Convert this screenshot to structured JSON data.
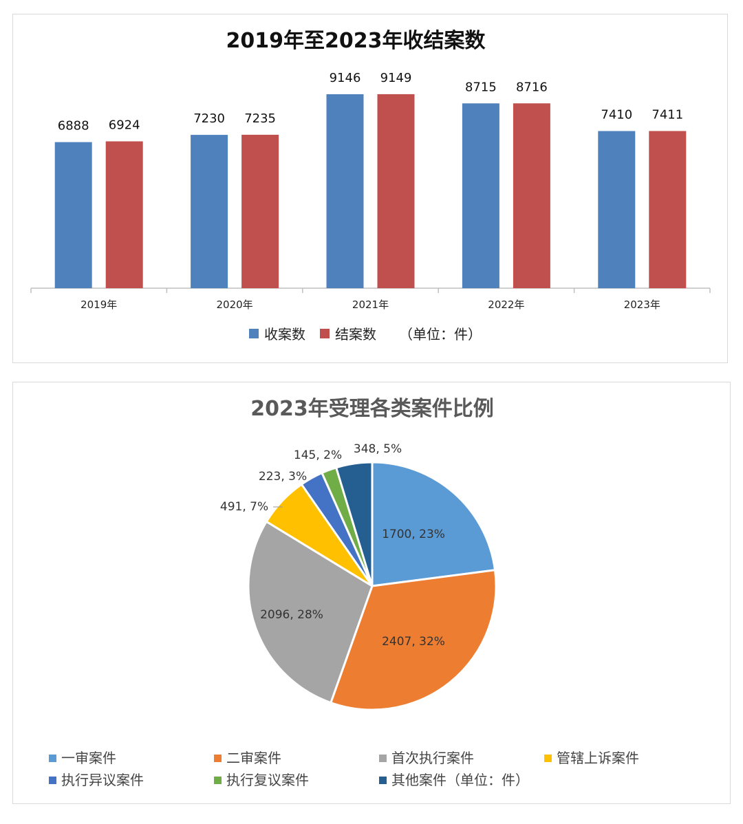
{
  "chart_data": [
    {
      "type": "bar",
      "title": "2019年至2023年收结案数",
      "categories": [
        "2019年",
        "2020年",
        "2021年",
        "2022年",
        "2023年"
      ],
      "series": [
        {
          "name": "收案数",
          "values": [
            6888,
            7230,
            9146,
            8715,
            7410
          ],
          "color": "#4f81bd"
        },
        {
          "name": "结案数",
          "values": [
            6924,
            7235,
            9149,
            8716,
            7411
          ],
          "color": "#c0504d"
        }
      ],
      "unit_note": "（单位：件）",
      "ylim": [
        0,
        10000
      ],
      "grid": false,
      "legend": "bottom"
    },
    {
      "type": "pie",
      "title": "2023年受理各类案件比例",
      "slices": [
        {
          "name": "一审案件",
          "value": 1700,
          "percent": "23%",
          "label": "1700, 23%",
          "color": "#5b9bd5"
        },
        {
          "name": "二审案件",
          "value": 2407,
          "percent": "32%",
          "label": "2407, 32%",
          "color": "#ed7d31"
        },
        {
          "name": "首次执行案件",
          "value": 2096,
          "percent": "28%",
          "label": "2096, 28%",
          "color": "#a5a5a5"
        },
        {
          "name": "管辖上诉案件",
          "value": 491,
          "percent": "7%",
          "label": "491, 7%",
          "color": "#ffc000"
        },
        {
          "name": "执行异议案件",
          "value": 223,
          "percent": "3%",
          "label": "223, 3%",
          "color": "#4472c4"
        },
        {
          "name": "执行复议案件",
          "value": 145,
          "percent": "2%",
          "label": "145, 2%",
          "color": "#70ad47"
        },
        {
          "name": "其他案件（单位：件）",
          "value": 348,
          "percent": "5%",
          "label": "348, 5%",
          "color": "#255e91"
        }
      ],
      "legend": "bottom"
    }
  ]
}
